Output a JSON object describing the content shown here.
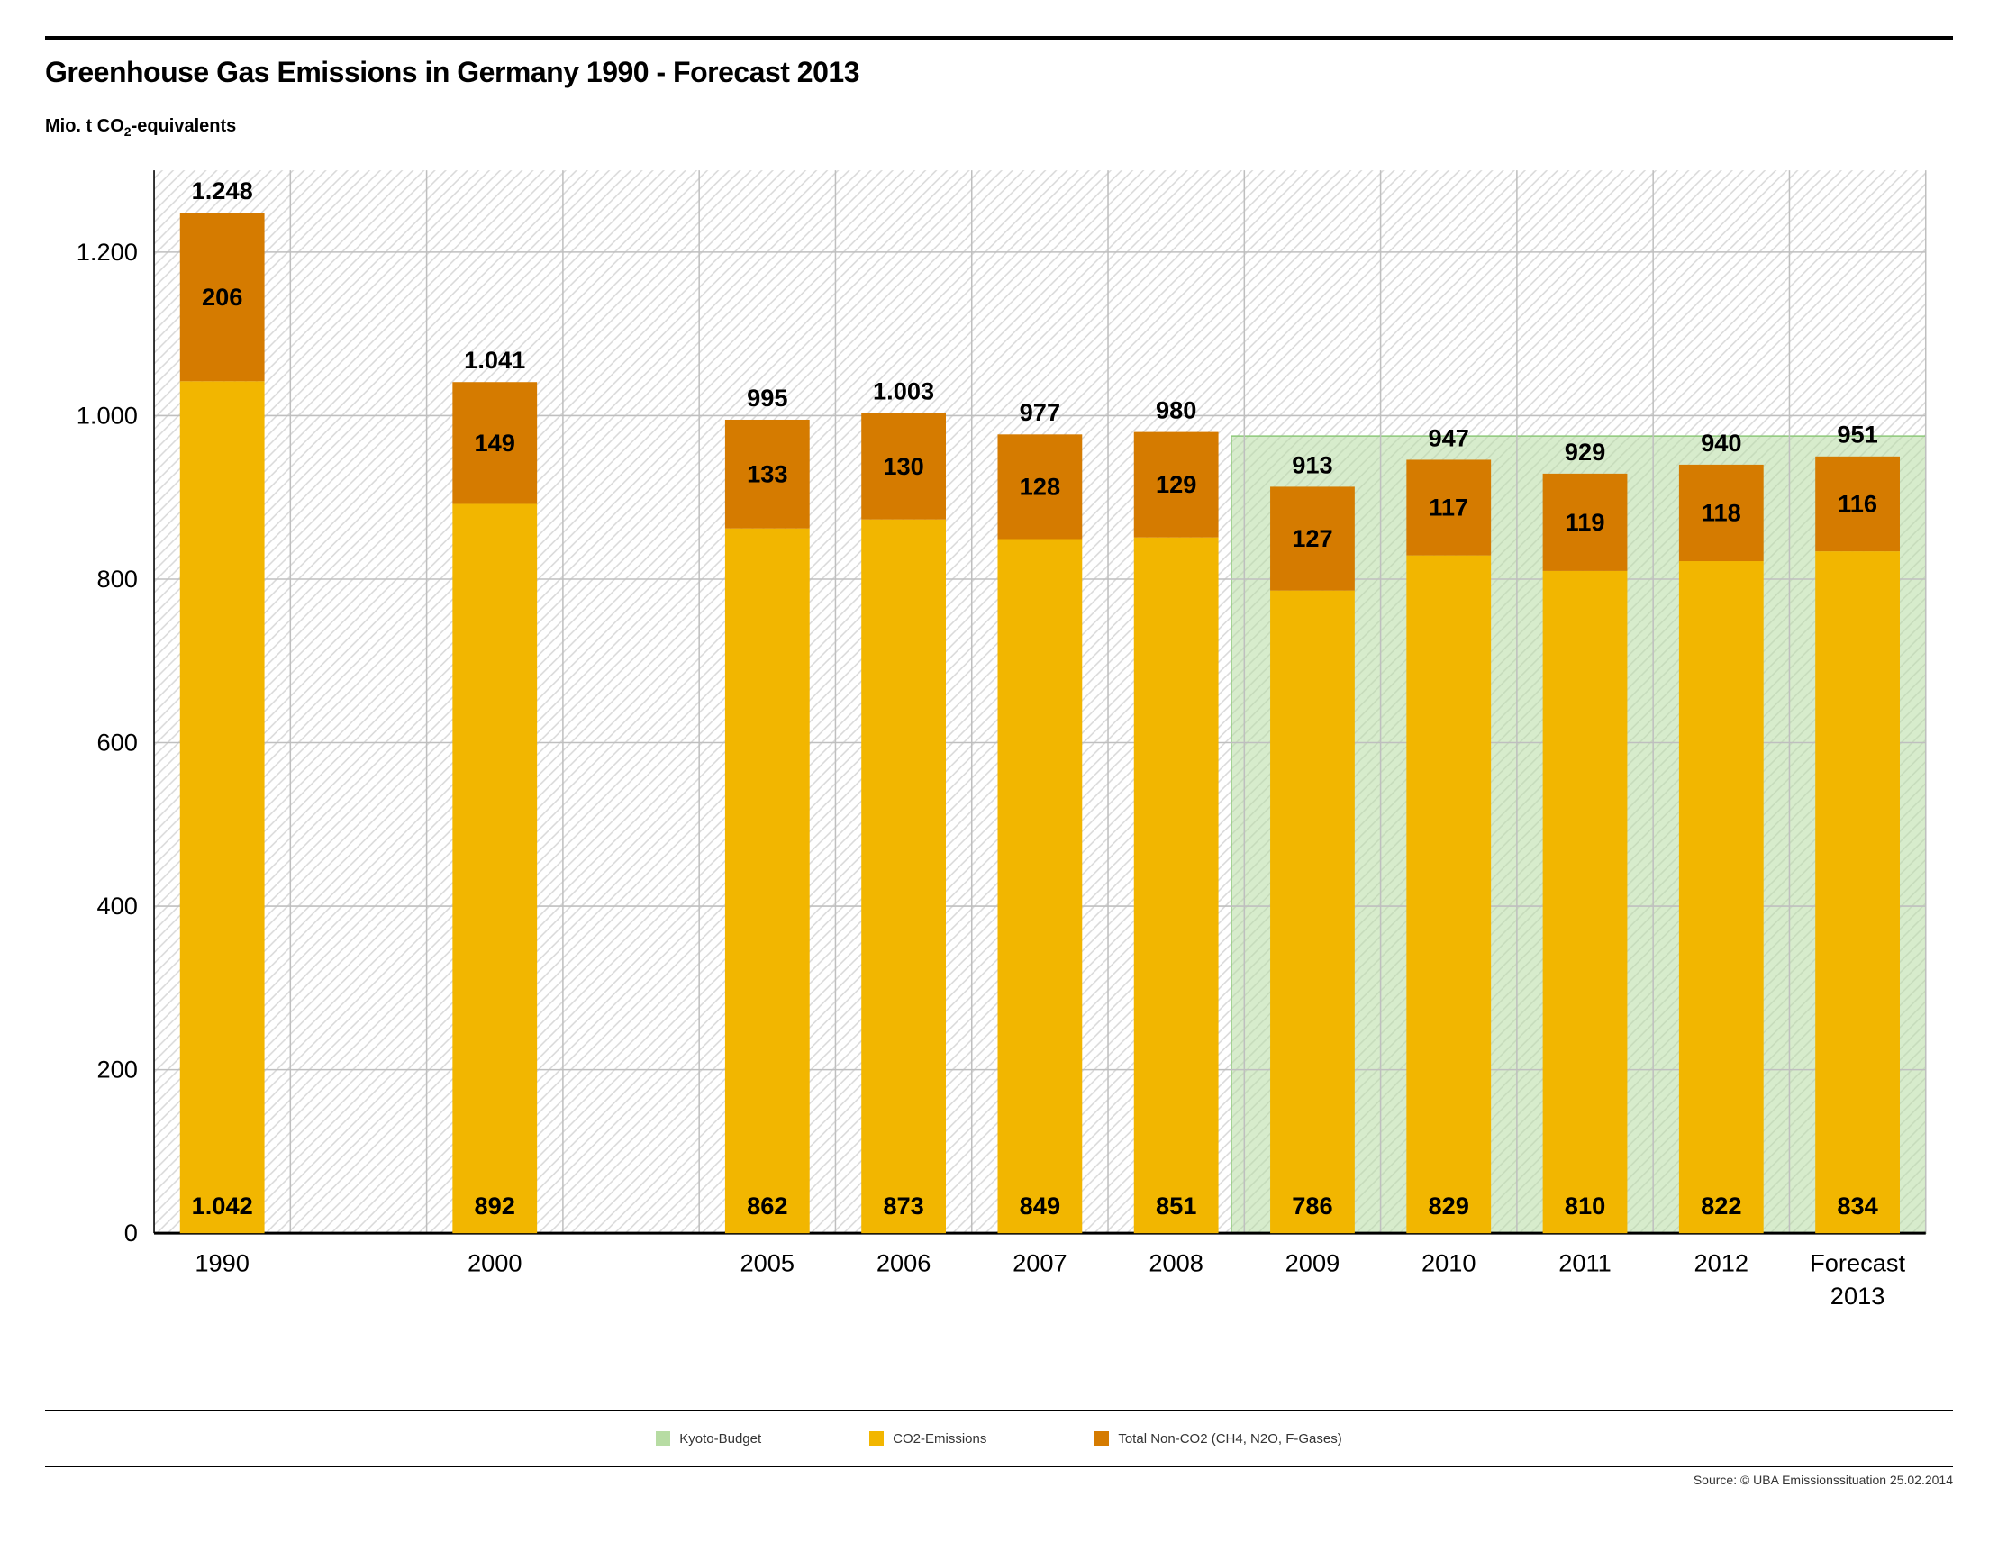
{
  "title": "Greenhouse Gas Emissions in Germany 1990 - Forecast 2013",
  "subtitle_prefix": "Mio. t CO",
  "subtitle_suffix": "-equivalents",
  "chart": {
    "type": "stacked-bar",
    "ylim": [
      0,
      1300
    ],
    "ytick_step": 200,
    "yticks": [
      "0",
      "200",
      "400",
      "600",
      "800",
      "1.000",
      "1.200"
    ],
    "grid_color": "#bfbfbf",
    "hatch_color": "#d9d9d9",
    "background_color": "#ffffff",
    "axis_color": "#000000",
    "tick_label_fontsize": 18,
    "value_label_fontsize": 18,
    "bar_width_ratio": 0.62,
    "colors": {
      "co2": "#f2b600",
      "nonco2": "#d57b00",
      "kyoto_fill": "#b7dca3",
      "kyoto_stroke": "#8ec97b"
    },
    "kyoto_budget": {
      "start_slot": 6,
      "end_slot": 10,
      "value": 975
    },
    "categories": [
      "1990",
      "2000",
      "2005",
      "2006",
      "2007",
      "2008",
      "2009",
      "2010",
      "2011",
      "2012",
      "Forecast 2013"
    ],
    "data": [
      {
        "co2": 1042,
        "nonco2": 206,
        "total_label": "1.248",
        "co2_label": "1.042",
        "nonco2_label": "206"
      },
      {
        "co2": 892,
        "nonco2": 149,
        "total_label": "1.041",
        "co2_label": "892",
        "nonco2_label": "149"
      },
      {
        "co2": 862,
        "nonco2": 133,
        "total_label": "995",
        "co2_label": "862",
        "nonco2_label": "133"
      },
      {
        "co2": 873,
        "nonco2": 130,
        "total_label": "1.003",
        "co2_label": "873",
        "nonco2_label": "130"
      },
      {
        "co2": 849,
        "nonco2": 128,
        "total_label": "977",
        "co2_label": "849",
        "nonco2_label": "128"
      },
      {
        "co2": 851,
        "nonco2": 129,
        "total_label": "980",
        "co2_label": "851",
        "nonco2_label": "129"
      },
      {
        "co2": 786,
        "nonco2": 127,
        "total_label": "913",
        "co2_label": "786",
        "nonco2_label": "127"
      },
      {
        "co2": 829,
        "nonco2": 117,
        "total_label": "947",
        "co2_label": "829",
        "nonco2_label": "117"
      },
      {
        "co2": 810,
        "nonco2": 119,
        "total_label": "929",
        "co2_label": "810",
        "nonco2_label": "119"
      },
      {
        "co2": 822,
        "nonco2": 118,
        "total_label": "940",
        "co2_label": "822",
        "nonco2_label": "118"
      },
      {
        "co2": 834,
        "nonco2": 116,
        "total_label": "951",
        "co2_label": "834",
        "nonco2_label": "116"
      }
    ],
    "gaps_after": [
      0,
      1
    ]
  },
  "legend": {
    "kyoto": "Kyoto-Budget",
    "co2": "CO2-Emissions",
    "nonco2": "Total Non-CO2 (CH4, N2O, F-Gases)"
  },
  "source": "Source: © UBA Emissionssituation 25.02.2014"
}
